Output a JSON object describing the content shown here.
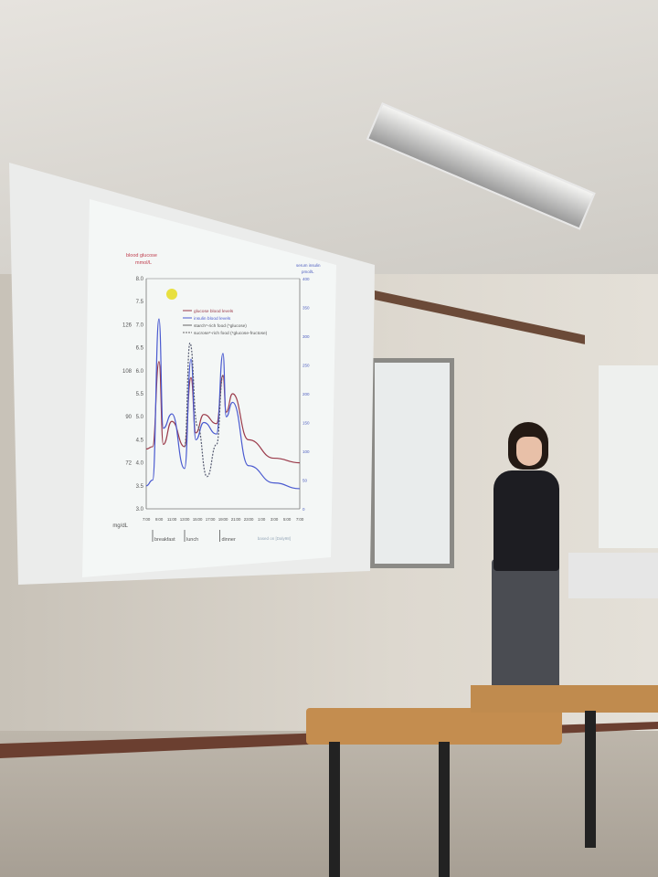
{
  "scene": {
    "description_items": [
      "projector-screen",
      "presenter",
      "whiteboard",
      "desks",
      "ceiling-light"
    ]
  },
  "chart_data": {
    "type": "line",
    "title": "",
    "left_axis_label": [
      "blood glucose",
      "mmol/L"
    ],
    "right_axis_label": [
      "serum insulin",
      "pmol/L"
    ],
    "left_ylim": [
      3.0,
      8.0
    ],
    "left_ticks": [
      "3.0",
      "3.5",
      "4.0",
      "4.5",
      "5.0",
      "5.5",
      "6.0",
      "6.5",
      "7.0",
      "7.5",
      "8.0"
    ],
    "mgdl_label": "mg/dL",
    "mgdl_ticks": [
      {
        "label": "72",
        "at": 4.0
      },
      {
        "label": "90",
        "at": 5.0
      },
      {
        "label": "108",
        "at": 6.0
      },
      {
        "label": "126",
        "at": 7.0
      }
    ],
    "right_ylim": [
      0,
      400
    ],
    "right_ticks": [
      "0",
      "50",
      "100",
      "150",
      "200",
      "250",
      "300",
      "350",
      "400"
    ],
    "x_ticks": [
      "7:00",
      "9:00",
      "11:00",
      "13:00",
      "15:00",
      "17:00",
      "19:00",
      "21:00",
      "23:00",
      "1:00",
      "3:00",
      "5:00",
      "7:00"
    ],
    "meals": [
      {
        "label": "breakfast",
        "time": "8:00"
      },
      {
        "label": "lunch",
        "time": "13:00"
      },
      {
        "label": "dinner",
        "time": "18:30"
      }
    ],
    "source": "based on [Daly98]",
    "legend": [
      {
        "label": "glucose blood levels",
        "color": "#9a3a4a",
        "style": "solid"
      },
      {
        "label": "insulin blood levels",
        "color": "#4a5ad0",
        "style": "solid"
      },
      {
        "label": "starch*-rich food",
        "note": "(*glucose)",
        "style": "solid-double"
      },
      {
        "label": "sucrose*-rich food",
        "note": "(*glucose-fructose)",
        "style": "dashed"
      }
    ],
    "series": [
      {
        "name": "glucose blood levels",
        "axis": "left",
        "color": "#9a3a4a",
        "x": [
          "7:00",
          "8:00",
          "9:00",
          "9:40",
          "11:00",
          "13:00",
          "14:00",
          "14:45",
          "16:00",
          "18:00",
          "19:00",
          "19:30",
          "20:30",
          "23:00",
          "3:00",
          "7:00"
        ],
        "y": [
          4.3,
          4.35,
          6.2,
          4.4,
          4.9,
          4.35,
          5.85,
          4.65,
          5.05,
          4.85,
          5.9,
          5.1,
          5.5,
          4.5,
          4.1,
          4.0
        ]
      },
      {
        "name": "insulin blood levels",
        "axis": "right",
        "color": "#4a5ad0",
        "x": [
          "7:00",
          "8:00",
          "9:00",
          "9:40",
          "11:00",
          "13:00",
          "14:00",
          "14:45",
          "16:00",
          "18:00",
          "19:00",
          "19:30",
          "20:30",
          "23:00",
          "3:00",
          "7:00"
        ],
        "y": [
          40,
          50,
          330,
          140,
          165,
          70,
          260,
          120,
          150,
          130,
          270,
          160,
          185,
          75,
          45,
          35
        ]
      },
      {
        "name": "sucrose*-rich food",
        "axis": "left",
        "color": "#555a70",
        "dashed": true,
        "x": [
          "13:00",
          "13:50",
          "15:00",
          "16:30",
          "18:00",
          "19:00"
        ],
        "y": [
          4.35,
          6.6,
          4.8,
          3.7,
          4.4,
          5.9
        ]
      }
    ]
  }
}
